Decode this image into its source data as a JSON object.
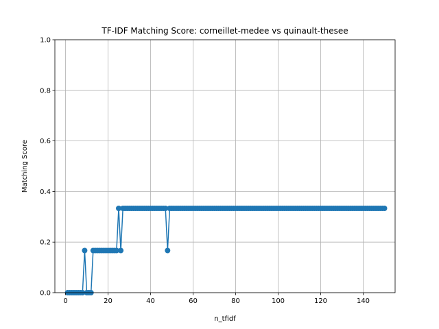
{
  "chart_data": {
    "type": "line",
    "title": "TF-IDF Matching Score: corneillet-medee vs quinault-thesee",
    "xlabel": "n_tfidf",
    "ylabel": "Matching Score",
    "xlim": [
      -5,
      155
    ],
    "ylim": [
      0,
      1
    ],
    "xticks": [
      0,
      20,
      40,
      60,
      80,
      100,
      120,
      140
    ],
    "yticks": [
      0.0,
      0.2,
      0.4,
      0.6,
      0.8,
      1.0
    ],
    "ytick_labels": [
      "0.0",
      "0.2",
      "0.4",
      "0.6",
      "0.8",
      "1.0"
    ],
    "grid": true,
    "series": [
      {
        "color": "#1f77b4",
        "marker": "circle",
        "x": [
          1,
          2,
          3,
          4,
          5,
          6,
          7,
          8,
          9,
          10,
          11,
          12,
          13,
          14,
          15,
          16,
          17,
          18,
          19,
          20,
          21,
          22,
          23,
          24,
          25,
          26,
          27,
          28,
          29,
          30,
          31,
          32,
          33,
          34,
          35,
          36,
          37,
          38,
          39,
          40,
          41,
          42,
          43,
          44,
          45,
          46,
          47,
          48,
          49,
          50,
          51,
          52,
          53,
          54,
          55,
          56,
          57,
          58,
          59,
          60,
          61,
          62,
          63,
          64,
          65,
          66,
          67,
          68,
          69,
          70,
          71,
          72,
          73,
          74,
          75,
          76,
          77,
          78,
          79,
          80,
          81,
          82,
          83,
          84,
          85,
          86,
          87,
          88,
          89,
          90,
          91,
          92,
          93,
          94,
          95,
          96,
          97,
          98,
          99,
          100,
          101,
          102,
          103,
          104,
          105,
          106,
          107,
          108,
          109,
          110,
          111,
          112,
          113,
          114,
          115,
          116,
          117,
          118,
          119,
          120,
          121,
          122,
          123,
          124,
          125,
          126,
          127,
          128,
          129,
          130,
          131,
          132,
          133,
          134,
          135,
          136,
          137,
          138,
          139,
          140,
          141,
          142,
          143,
          144,
          145,
          146,
          147,
          148,
          149,
          150
        ],
        "y": [
          0,
          0,
          0,
          0,
          0,
          0,
          0,
          0,
          0.1667,
          0,
          0,
          0,
          0.1667,
          0.1667,
          0.1667,
          0.1667,
          0.1667,
          0.1667,
          0.1667,
          0.1667,
          0.1667,
          0.1667,
          0.1667,
          0.1667,
          0.3333,
          0.1667,
          0.3333,
          0.3333,
          0.3333,
          0.3333,
          0.3333,
          0.3333,
          0.3333,
          0.3333,
          0.3333,
          0.3333,
          0.3333,
          0.3333,
          0.3333,
          0.3333,
          0.3333,
          0.3333,
          0.3333,
          0.3333,
          0.3333,
          0.3333,
          0.3333,
          0.1667,
          0.3333,
          0.3333,
          0.3333,
          0.3333,
          0.3333,
          0.3333,
          0.3333,
          0.3333,
          0.3333,
          0.3333,
          0.3333,
          0.3333,
          0.3333,
          0.3333,
          0.3333,
          0.3333,
          0.3333,
          0.3333,
          0.3333,
          0.3333,
          0.3333,
          0.3333,
          0.3333,
          0.3333,
          0.3333,
          0.3333,
          0.3333,
          0.3333,
          0.3333,
          0.3333,
          0.3333,
          0.3333,
          0.3333,
          0.3333,
          0.3333,
          0.3333,
          0.3333,
          0.3333,
          0.3333,
          0.3333,
          0.3333,
          0.3333,
          0.3333,
          0.3333,
          0.3333,
          0.3333,
          0.3333,
          0.3333,
          0.3333,
          0.3333,
          0.3333,
          0.3333,
          0.3333,
          0.3333,
          0.3333,
          0.3333,
          0.3333,
          0.3333,
          0.3333,
          0.3333,
          0.3333,
          0.3333,
          0.3333,
          0.3333,
          0.3333,
          0.3333,
          0.3333,
          0.3333,
          0.3333,
          0.3333,
          0.3333,
          0.3333,
          0.3333,
          0.3333,
          0.3333,
          0.3333,
          0.3333,
          0.3333,
          0.3333,
          0.3333,
          0.3333,
          0.3333,
          0.3333,
          0.3333,
          0.3333,
          0.3333,
          0.3333,
          0.3333,
          0.3333,
          0.3333,
          0.3333,
          0.3333,
          0.3333,
          0.3333,
          0.3333,
          0.3333,
          0.3333,
          0.3333,
          0.3333,
          0.3333,
          0.3333,
          0.3333
        ]
      }
    ]
  }
}
